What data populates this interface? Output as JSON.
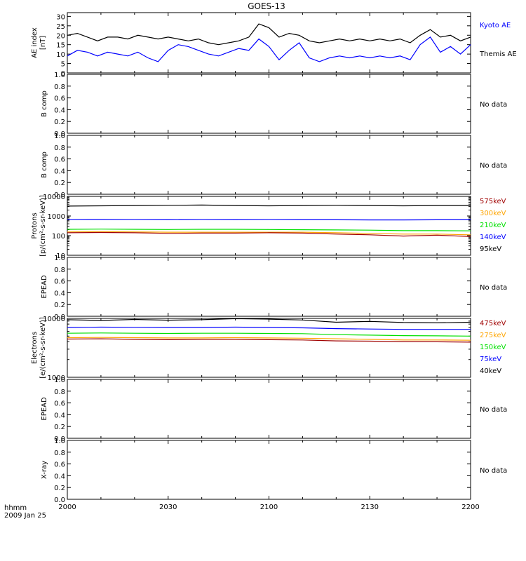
{
  "title": "GOES-13",
  "time_axis": {
    "label_line1": "hhmm",
    "label_line2": "2009 Jan 25",
    "ticks": [
      "2000",
      "2030",
      "2100",
      "2130",
      "2200"
    ]
  },
  "colors": {
    "kyoto_ae": "#0000ff",
    "themis_ae": "#000000",
    "p575": "#a00000",
    "p300": "#ffa500",
    "p210": "#00e000",
    "p140": "#0000ff",
    "p95": "#000000",
    "e475": "#a00000",
    "e275": "#ffa500",
    "e150": "#00e000",
    "e75": "#0000ff",
    "e40": "#000000"
  },
  "chart_data": [
    {
      "id": "ae",
      "type": "line",
      "ylabel_line1": "AE index",
      "ylabel_line2": "[nT]",
      "ylim": [
        0,
        32
      ],
      "yticks": [
        "0",
        "5",
        "10",
        "15",
        "20",
        "25",
        "30"
      ],
      "legend": [
        {
          "text": "Kyoto AE",
          "color": "#0000ff"
        },
        {
          "text": "Themis AE",
          "color": "#000000"
        }
      ],
      "x": [
        0,
        3,
        6,
        9,
        12,
        15,
        18,
        21,
        24,
        27,
        30,
        33,
        36,
        39,
        42,
        45,
        48,
        51,
        54,
        57,
        60,
        63,
        66,
        69,
        72,
        75,
        78,
        81,
        84,
        87,
        90,
        93,
        96,
        99,
        102,
        105,
        108,
        111,
        114,
        117,
        120
      ],
      "series": [
        {
          "name": "Themis AE",
          "color": "#000000",
          "values": [
            20,
            21,
            19,
            17,
            19,
            19,
            18,
            20,
            19,
            18,
            19,
            18,
            17,
            18,
            16,
            15,
            16,
            17,
            19,
            26,
            24,
            19,
            21,
            20,
            17,
            16,
            17,
            18,
            17,
            18,
            17,
            18,
            17,
            18,
            16,
            20,
            23,
            19,
            20,
            17,
            19
          ]
        },
        {
          "name": "Kyoto AE",
          "color": "#0000ff",
          "values": [
            9,
            12,
            11,
            9,
            11,
            10,
            9,
            11,
            8,
            6,
            12,
            15,
            14,
            12,
            10,
            9,
            11,
            13,
            12,
            18,
            14,
            7,
            12,
            16,
            8,
            6,
            8,
            9,
            8,
            9,
            8,
            9,
            8,
            9,
            7,
            15,
            19,
            11,
            14,
            10,
            15
          ]
        }
      ]
    },
    {
      "id": "b1",
      "type": "line",
      "ylabel_line1": "B comp",
      "ylim": [
        0,
        1
      ],
      "yticks": [
        "0.0",
        "0.2",
        "0.4",
        "0.6",
        "0.8",
        "1.0"
      ],
      "legend": [
        {
          "text": "No data",
          "color": "#000000"
        }
      ],
      "series": []
    },
    {
      "id": "b2",
      "type": "line",
      "ylabel_line1": "B comp",
      "ylim": [
        0,
        1
      ],
      "yticks": [
        "0.0",
        "0.2",
        "0.4",
        "0.6",
        "0.8",
        "1.0"
      ],
      "legend": [
        {
          "text": "No data",
          "color": "#000000"
        }
      ],
      "series": []
    },
    {
      "id": "protons",
      "type": "line",
      "yscale": "log",
      "ylabel_line1": "Protons",
      "ylabel_line2": "[p/(cm²-s-sr-keV)]",
      "ylim": [
        10,
        10000
      ],
      "yticks": [
        "10",
        "100",
        "1000",
        "10000"
      ],
      "legend": [
        {
          "text": "575keV",
          "color": "#a00000"
        },
        {
          "text": "300keV",
          "color": "#ffa500"
        },
        {
          "text": "210keV",
          "color": "#00e000"
        },
        {
          "text": "140keV",
          "color": "#0000ff"
        },
        {
          "text": "95keV",
          "color": "#000000"
        }
      ],
      "x": [
        0,
        10,
        20,
        30,
        40,
        50,
        60,
        70,
        80,
        90,
        100,
        110,
        120
      ],
      "series": [
        {
          "name": "95keV",
          "color": "#000000",
          "values": [
            3200,
            3300,
            3400,
            3500,
            3600,
            3400,
            3300,
            3400,
            3500,
            3400,
            3300,
            3400,
            3400
          ]
        },
        {
          "name": "140keV",
          "color": "#0000ff",
          "values": [
            650,
            660,
            650,
            640,
            650,
            640,
            650,
            640,
            640,
            630,
            630,
            640,
            640
          ]
        },
        {
          "name": "210keV",
          "color": "#00e000",
          "values": [
            210,
            215,
            210,
            205,
            210,
            210,
            205,
            200,
            195,
            190,
            180,
            180,
            175
          ]
        },
        {
          "name": "300keV",
          "color": "#ffa500",
          "values": [
            155,
            160,
            155,
            150,
            150,
            150,
            150,
            150,
            140,
            130,
            120,
            120,
            110
          ]
        },
        {
          "name": "575keV",
          "color": "#a00000",
          "values": [
            140,
            145,
            140,
            130,
            135,
            135,
            140,
            135,
            120,
            110,
            95,
            105,
            90
          ]
        }
      ]
    },
    {
      "id": "epead1",
      "type": "line",
      "ylabel_line1": "EPEAD",
      "ylim": [
        0,
        1
      ],
      "yticks": [
        "0.0",
        "0.2",
        "0.4",
        "0.6",
        "0.8",
        "1.0"
      ],
      "legend": [
        {
          "text": "No data",
          "color": "#000000"
        }
      ],
      "series": []
    },
    {
      "id": "electrons",
      "type": "line",
      "yscale": "log",
      "ylabel_line1": "Electrons",
      "ylabel_line2": "[e/(cm²-s-sr-keV)]",
      "ylim": [
        1000,
        10000
      ],
      "yticks": [
        "1000",
        "10000"
      ],
      "legend": [
        {
          "text": "475keV",
          "color": "#a00000"
        },
        {
          "text": "275keV",
          "color": "#ffa500"
        },
        {
          "text": "150keV",
          "color": "#00e000"
        },
        {
          "text": "75keV",
          "color": "#0000ff"
        },
        {
          "text": "40keV",
          "color": "#000000"
        }
      ],
      "x": [
        0,
        10,
        20,
        30,
        40,
        50,
        60,
        70,
        80,
        90,
        100,
        110,
        120
      ],
      "series": [
        {
          "name": "40keV",
          "color": "#000000",
          "values": [
            9500,
            9200,
            9600,
            9300,
            9500,
            9900,
            9700,
            9400,
            8600,
            8900,
            8500,
            8400,
            8600
          ]
        },
        {
          "name": "75keV",
          "color": "#0000ff",
          "values": [
            7000,
            7100,
            7050,
            7000,
            7000,
            7100,
            7000,
            6900,
            6700,
            6600,
            6500,
            6500,
            6500
          ]
        },
        {
          "name": "150keV",
          "color": "#00e000",
          "values": [
            5600,
            5650,
            5600,
            5550,
            5600,
            5600,
            5550,
            5500,
            5300,
            5200,
            5100,
            5050,
            5000
          ]
        },
        {
          "name": "275keV",
          "color": "#ffa500",
          "values": [
            4700,
            4750,
            4700,
            4650,
            4650,
            4700,
            4650,
            4600,
            4500,
            4400,
            4300,
            4300,
            4250
          ]
        },
        {
          "name": "475keV",
          "color": "#a00000",
          "values": [
            4450,
            4500,
            4400,
            4350,
            4400,
            4400,
            4350,
            4300,
            4150,
            4100,
            4000,
            4000,
            3950
          ]
        }
      ]
    },
    {
      "id": "epead2",
      "type": "line",
      "ylabel_line1": "EPEAD",
      "ylim": [
        0,
        1
      ],
      "yticks": [
        "0.0",
        "0.2",
        "0.4",
        "0.6",
        "0.8",
        "1.0"
      ],
      "legend": [
        {
          "text": "No data",
          "color": "#000000"
        }
      ],
      "series": []
    },
    {
      "id": "xray",
      "type": "line",
      "ylabel_line1": "X-ray",
      "ylim": [
        0,
        1
      ],
      "yticks": [
        "0.0",
        "0.2",
        "0.4",
        "0.6",
        "0.8",
        "1.0"
      ],
      "legend": [
        {
          "text": "No data",
          "color": "#000000"
        }
      ],
      "series": []
    }
  ]
}
